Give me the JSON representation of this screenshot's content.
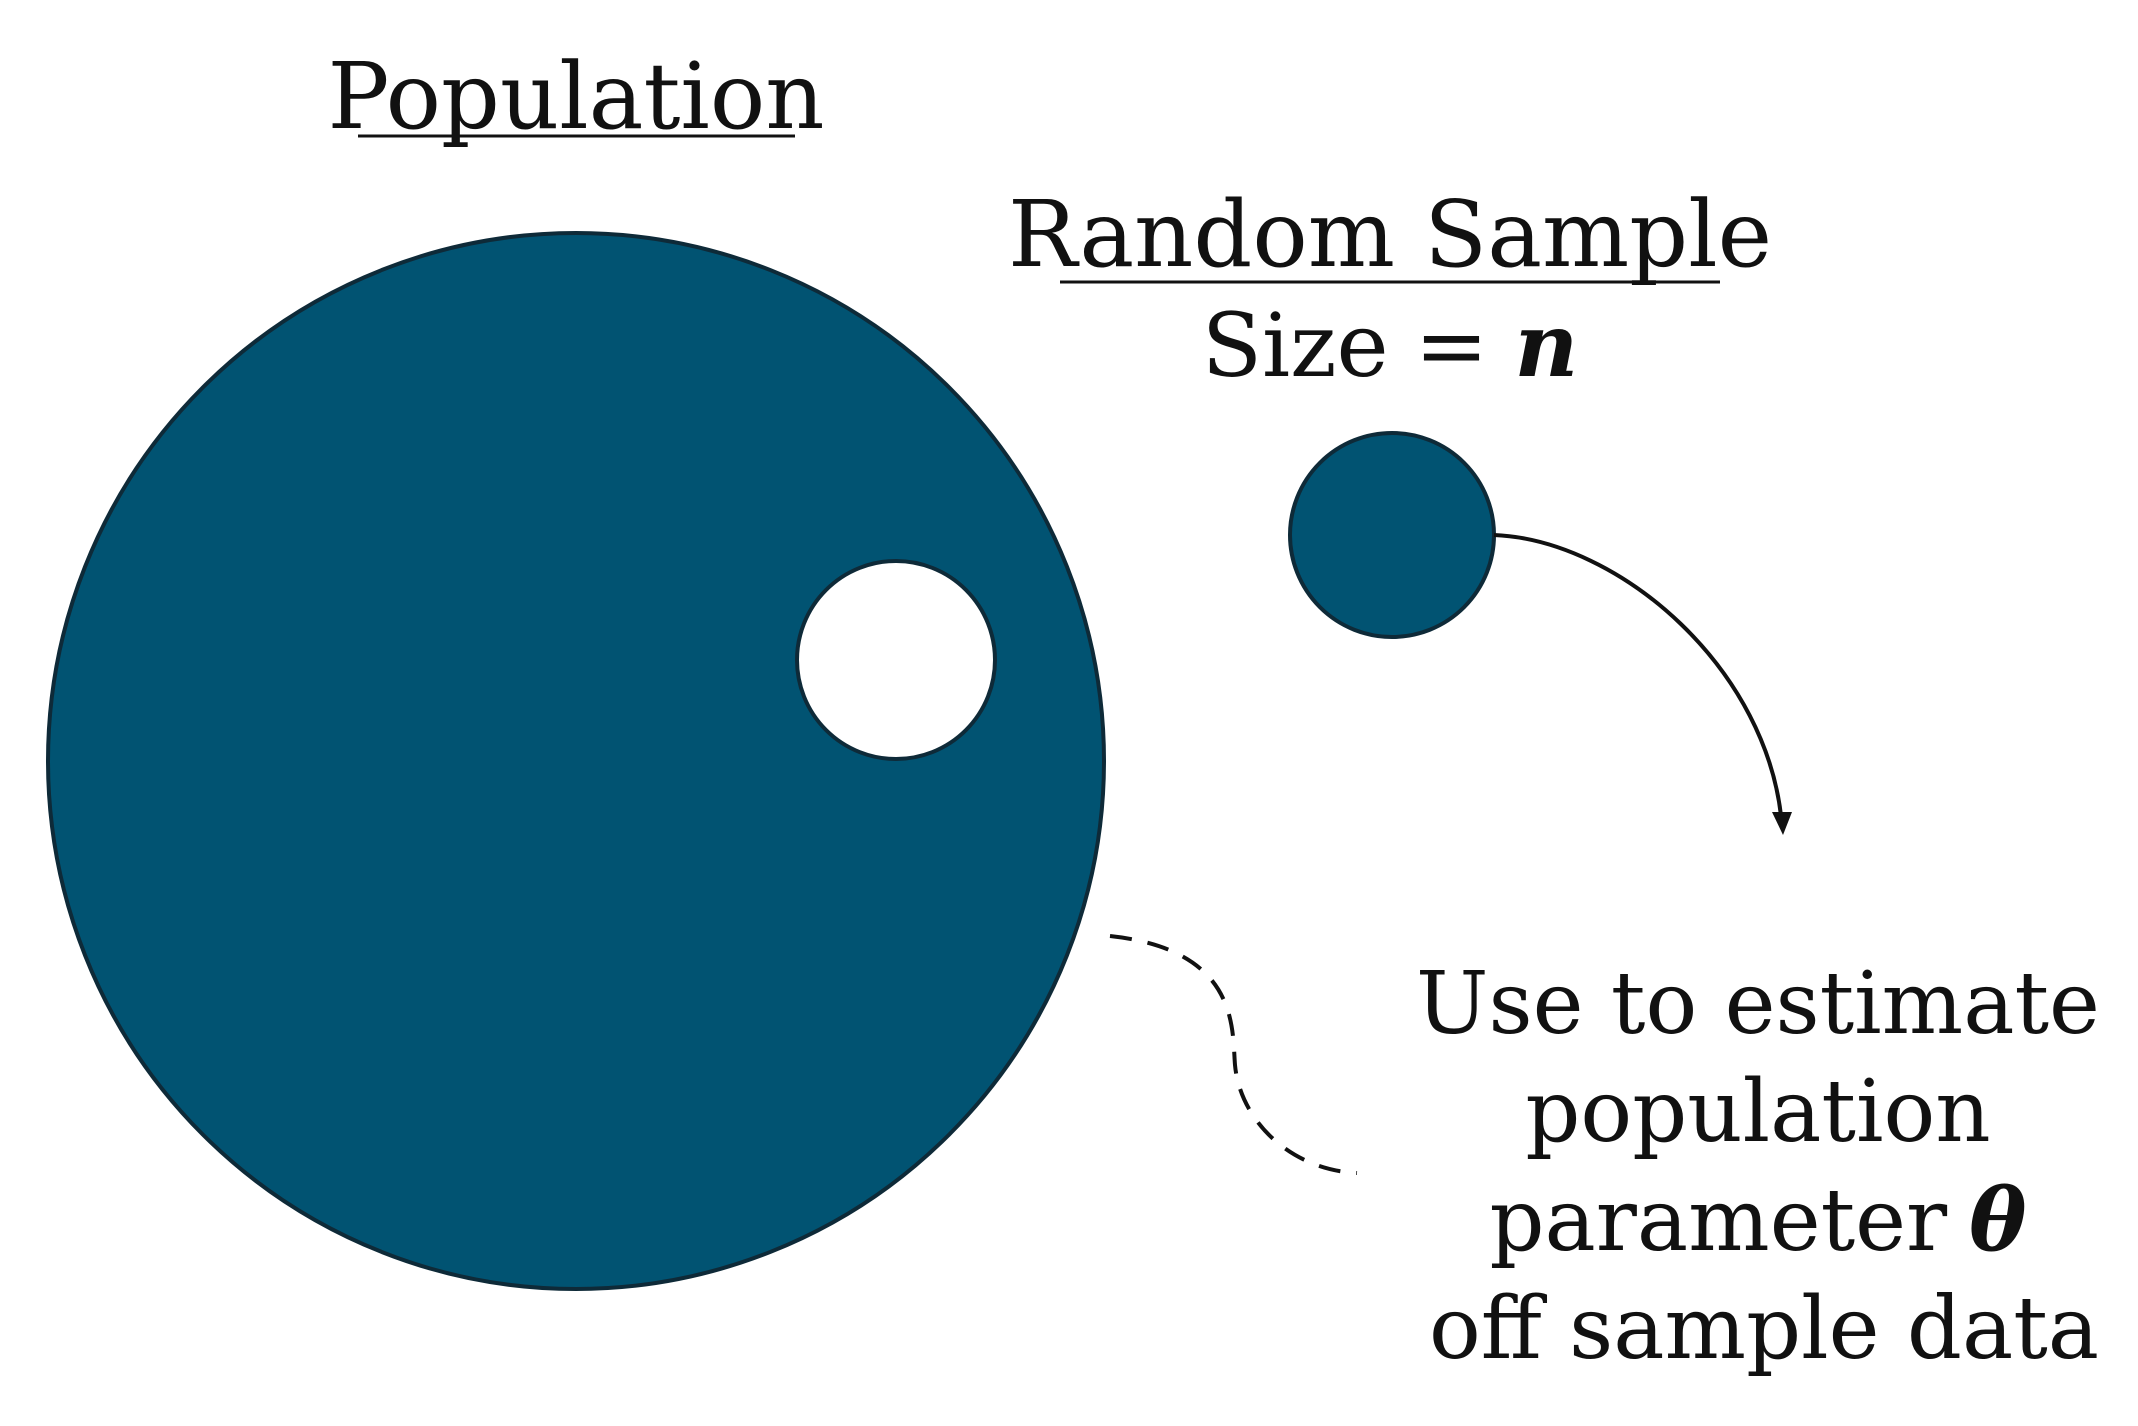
{
  "diagram": {
    "population_label": "Population",
    "sample_label": "Random Sample",
    "size_label": "Size",
    "size_equals": "=",
    "size_variable": "n",
    "estimate_lines": [
      "Use to estimate",
      "population",
      "parameter",
      "off sample data"
    ],
    "parameter_symbol": "θ",
    "colors": {
      "fill": "#015372",
      "outline": "#0e2a38",
      "hole": "#ffffff",
      "text": "#111111",
      "connector": "#111111"
    }
  }
}
